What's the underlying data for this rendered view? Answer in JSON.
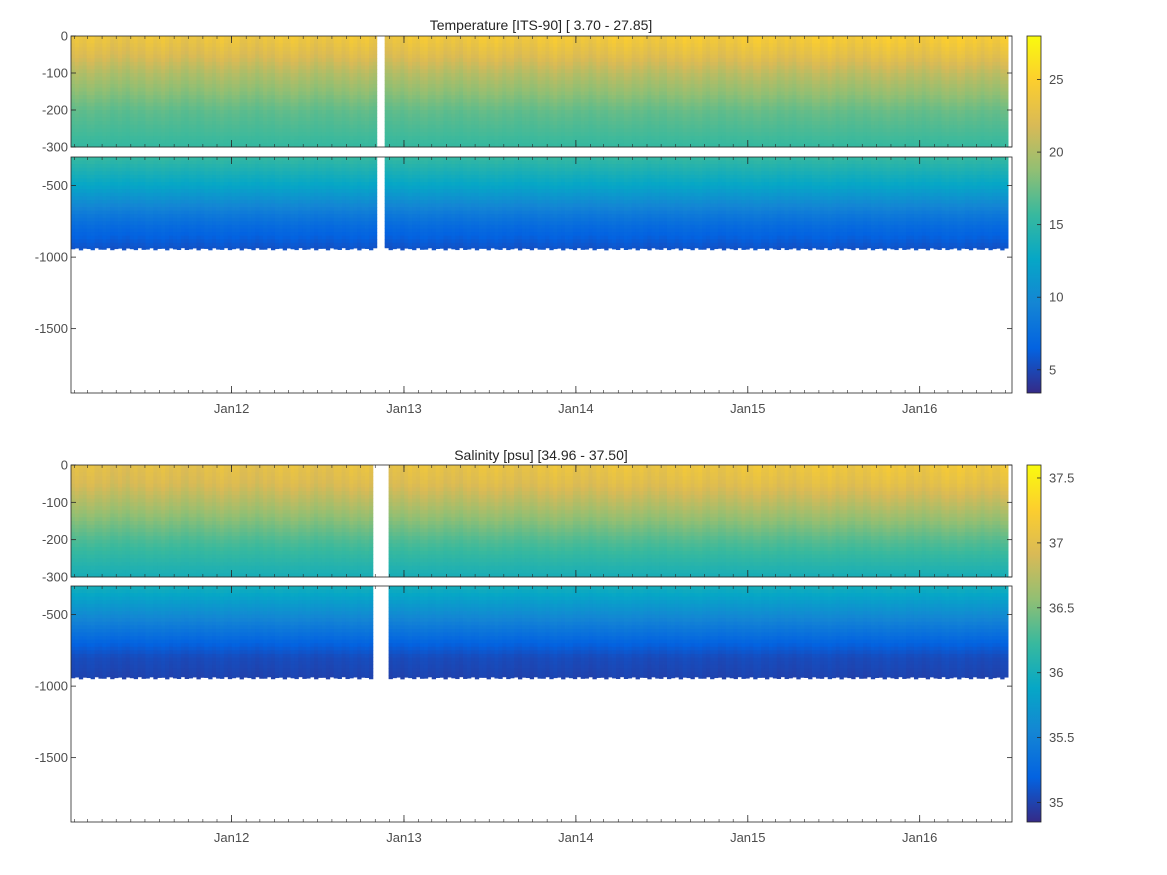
{
  "chart_data": [
    {
      "type": "heatmap",
      "title": "Temperature [ITS-90]   [ 3.70 - 27.85]",
      "xlabel": "",
      "ylabel": "",
      "x_ticks": [
        "Jan12",
        "Jan13",
        "Jan14",
        "Jan15",
        "Jan16"
      ],
      "x_tick_values": [
        "2012-01-01",
        "2013-01-01",
        "2014-01-01",
        "2015-01-01",
        "2016-01-01"
      ],
      "xlim": [
        "2011-01-25",
        "2016-07-15"
      ],
      "upper_panel": {
        "ylim": [
          -300,
          0
        ],
        "y_ticks": [
          0,
          -100,
          -200,
          -300
        ]
      },
      "lower_panel": {
        "ylim": [
          -1950,
          -300
        ],
        "y_ticks": [
          -500,
          -1000,
          -1500
        ]
      },
      "value_range": [
        3.7,
        27.85
      ],
      "colorbar": {
        "ticks": [
          5,
          10,
          15,
          20,
          25
        ],
        "clim": [
          3.4,
          28
        ]
      },
      "data_gap": [
        "2012-11-05",
        "2012-11-20"
      ],
      "profile_bottom_depth": -950,
      "depth_profile": [
        {
          "depth": 0,
          "value": 23.5
        },
        {
          "depth": -50,
          "value": 22.0
        },
        {
          "depth": -100,
          "value": 20.0
        },
        {
          "depth": -150,
          "value": 18.5
        },
        {
          "depth": -200,
          "value": 17.0
        },
        {
          "depth": -300,
          "value": 15.5
        },
        {
          "depth": -400,
          "value": 14.0
        },
        {
          "depth": -500,
          "value": 12.5
        },
        {
          "depth": -600,
          "value": 10.5
        },
        {
          "depth": -700,
          "value": 8.5
        },
        {
          "depth": -800,
          "value": 7.0
        },
        {
          "depth": -950,
          "value": 5.5
        }
      ],
      "grid": false,
      "legend": "colorbar-right"
    },
    {
      "type": "heatmap",
      "title": "Salinity [psu]   [34.96 - 37.50]",
      "xlabel": "",
      "ylabel": "",
      "x_ticks": [
        "Jan12",
        "Jan13",
        "Jan14",
        "Jan15",
        "Jan16"
      ],
      "x_tick_values": [
        "2012-01-01",
        "2013-01-01",
        "2014-01-01",
        "2015-01-01",
        "2016-01-01"
      ],
      "xlim": [
        "2011-01-25",
        "2016-07-15"
      ],
      "upper_panel": {
        "ylim": [
          -300,
          0
        ],
        "y_ticks": [
          0,
          -100,
          -200,
          -300
        ]
      },
      "lower_panel": {
        "ylim": [
          -1950,
          -300
        ],
        "y_ticks": [
          -500,
          -1000,
          -1500
        ]
      },
      "value_range": [
        34.96,
        37.5
      ],
      "colorbar": {
        "ticks": [
          35,
          35.5,
          36,
          36.5,
          37,
          37.5
        ],
        "clim": [
          34.85,
          37.6
        ]
      },
      "data_gap": [
        "2012-11-01",
        "2012-11-25"
      ],
      "profile_bottom_depth": -950,
      "depth_profile": [
        {
          "depth": 0,
          "value": 37.0
        },
        {
          "depth": -50,
          "value": 36.9
        },
        {
          "depth": -100,
          "value": 36.7
        },
        {
          "depth": -150,
          "value": 36.5
        },
        {
          "depth": -200,
          "value": 36.3
        },
        {
          "depth": -300,
          "value": 36.0
        },
        {
          "depth": -400,
          "value": 35.8
        },
        {
          "depth": -500,
          "value": 35.6
        },
        {
          "depth": -600,
          "value": 35.4
        },
        {
          "depth": -700,
          "value": 35.2
        },
        {
          "depth": -800,
          "value": 35.05
        },
        {
          "depth": -950,
          "value": 35.0
        }
      ],
      "grid": false,
      "legend": "colorbar-right"
    }
  ]
}
